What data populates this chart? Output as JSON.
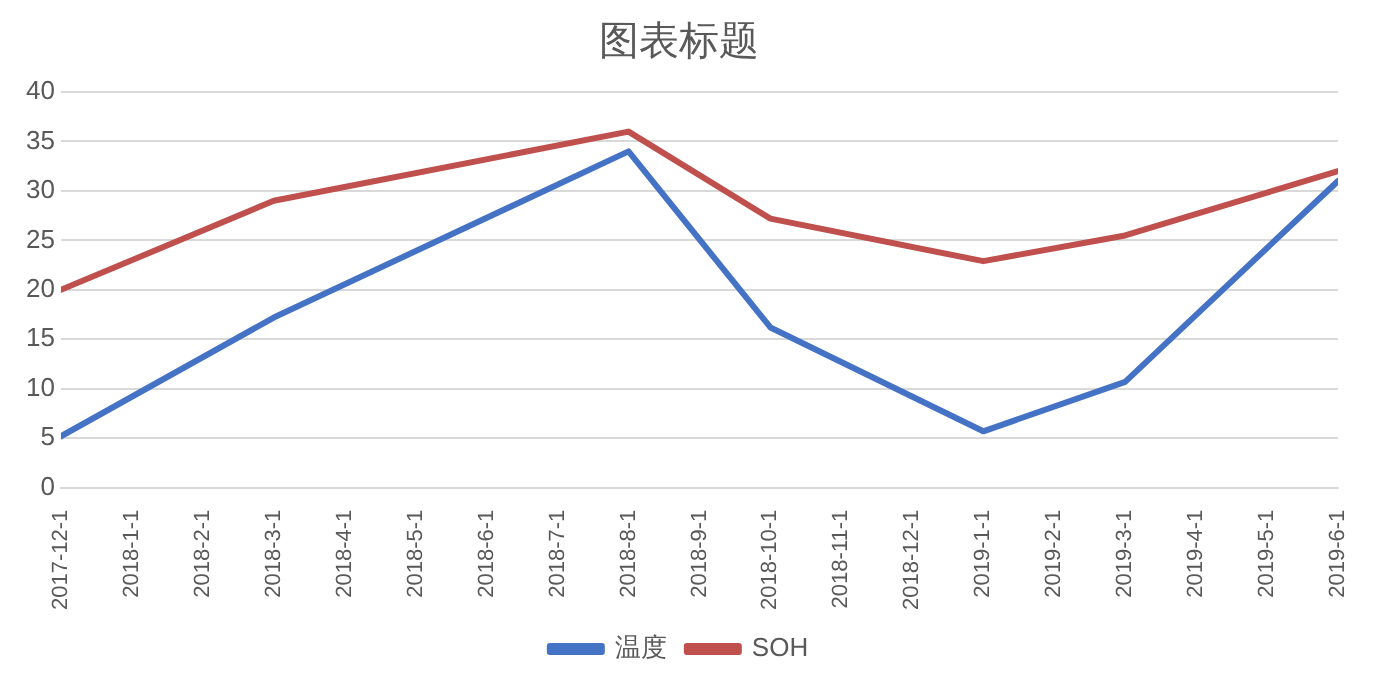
{
  "chart_data": {
    "type": "line",
    "title": "图表标题",
    "x": [
      "2017-12",
      "2018-03",
      "2018-08",
      "2018-10",
      "2019-01",
      "2019-03",
      "2019-06"
    ],
    "series": [
      {
        "name": "温度",
        "color": "#4472c4",
        "values": [
          5.2,
          17.2,
          34,
          16.2,
          5.7,
          10.7,
          31
        ]
      },
      {
        "name": "SOH",
        "color": "#c0504d",
        "values": [
          20,
          29,
          36,
          27.2,
          22.9,
          25.5,
          32
        ]
      }
    ],
    "xlim": [
      "2017-12",
      "2019-06"
    ],
    "xticks": [
      {
        "value": "2017-12",
        "label": "2017-12-1"
      },
      {
        "value": "2018-01",
        "label": "2018-1-1"
      },
      {
        "value": "2018-02",
        "label": "2018-2-1"
      },
      {
        "value": "2018-03",
        "label": "2018-3-1"
      },
      {
        "value": "2018-04",
        "label": "2018-4-1"
      },
      {
        "value": "2018-05",
        "label": "2018-5-1"
      },
      {
        "value": "2018-06",
        "label": "2018-6-1"
      },
      {
        "value": "2018-07",
        "label": "2018-7-1"
      },
      {
        "value": "2018-08",
        "label": "2018-8-1"
      },
      {
        "value": "2018-09",
        "label": "2018-9-1"
      },
      {
        "value": "2018-10",
        "label": "2018-10-1"
      },
      {
        "value": "2018-11",
        "label": "2018-11-1"
      },
      {
        "value": "2018-12",
        "label": "2018-12-1"
      },
      {
        "value": "2019-01",
        "label": "2019-1-1"
      },
      {
        "value": "2019-02",
        "label": "2019-2-1"
      },
      {
        "value": "2019-03",
        "label": "2019-3-1"
      },
      {
        "value": "2019-04",
        "label": "2019-4-1"
      },
      {
        "value": "2019-05",
        "label": "2019-5-1"
      },
      {
        "value": "2019-06",
        "label": "2019-6-1"
      }
    ],
    "ylim": [
      0,
      40
    ],
    "yticks": [
      0,
      5,
      10,
      15,
      20,
      25,
      30,
      35,
      40
    ],
    "grid": "y",
    "legend": "bottom",
    "marker": "none",
    "line_style": "solid"
  }
}
